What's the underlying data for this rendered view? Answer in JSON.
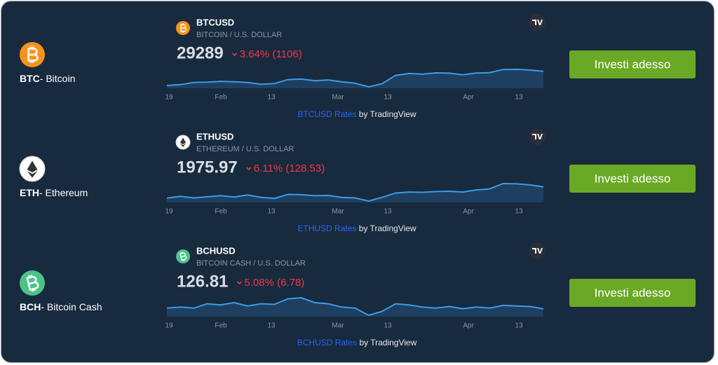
{
  "rows": [
    {
      "symbol": "BTC",
      "name": "- Bitcoin",
      "ticker": "BTCUSD",
      "pair": "BITCOIN / U.S. DOLLAR",
      "price": "29289",
      "change": "3.64% (1106)",
      "rates_link": "BTCUSD Rates",
      "by": "by TradingView",
      "button": "Investi adesso",
      "xticks": [
        "19",
        "Feb",
        "13",
        "Mar",
        "13",
        "Apr",
        "13"
      ],
      "values": [
        21100,
        21600,
        22900,
        23000,
        23500,
        23200,
        22800,
        21800,
        22200,
        24500,
        24800,
        23800,
        24300,
        23200,
        22400,
        20300,
        22100,
        26900,
        28000,
        27600,
        28400,
        28200,
        27300,
        28300,
        28500,
        30300,
        30400,
        30000,
        29289
      ]
    },
    {
      "symbol": "ETH",
      "name": "- Ethereum",
      "ticker": "ETHUSD",
      "pair": "ETHEREUM / U.S. DOLLAR",
      "price": "1975.97",
      "change": "6.11% (128.53)",
      "rates_link": "ETHUSD Rates",
      "by": "by TradingView",
      "button": "Investi adesso",
      "xticks": [
        "19",
        "Feb",
        "13",
        "Mar",
        "13",
        "Apr",
        "13"
      ],
      "values": [
        1550,
        1620,
        1560,
        1600,
        1640,
        1590,
        1670,
        1580,
        1540,
        1690,
        1680,
        1640,
        1650,
        1580,
        1560,
        1440,
        1580,
        1740,
        1780,
        1770,
        1800,
        1810,
        1780,
        1860,
        1900,
        2100,
        2090,
        2050,
        1975.97
      ]
    },
    {
      "symbol": "BCH",
      "name": "- Bitcoin Cash",
      "ticker": "BCHUSD",
      "pair": "BITCOIN CASH / U.S. DOLLAR",
      "price": "126.81",
      "change": "5.08% (6.78)",
      "rates_link": "BCHUSD Rates",
      "by": "by TradingView",
      "button": "Investi adesso",
      "xticks": [
        "19",
        "Feb",
        "13",
        "Mar",
        "13",
        "Apr",
        "13"
      ],
      "values": [
        128,
        130,
        128,
        136,
        134,
        138,
        132,
        136,
        135,
        145,
        147,
        138,
        136,
        130,
        128,
        115,
        122,
        136,
        134,
        130,
        128,
        131,
        127,
        130,
        128,
        133,
        132,
        131,
        126.81
      ]
    }
  ]
}
